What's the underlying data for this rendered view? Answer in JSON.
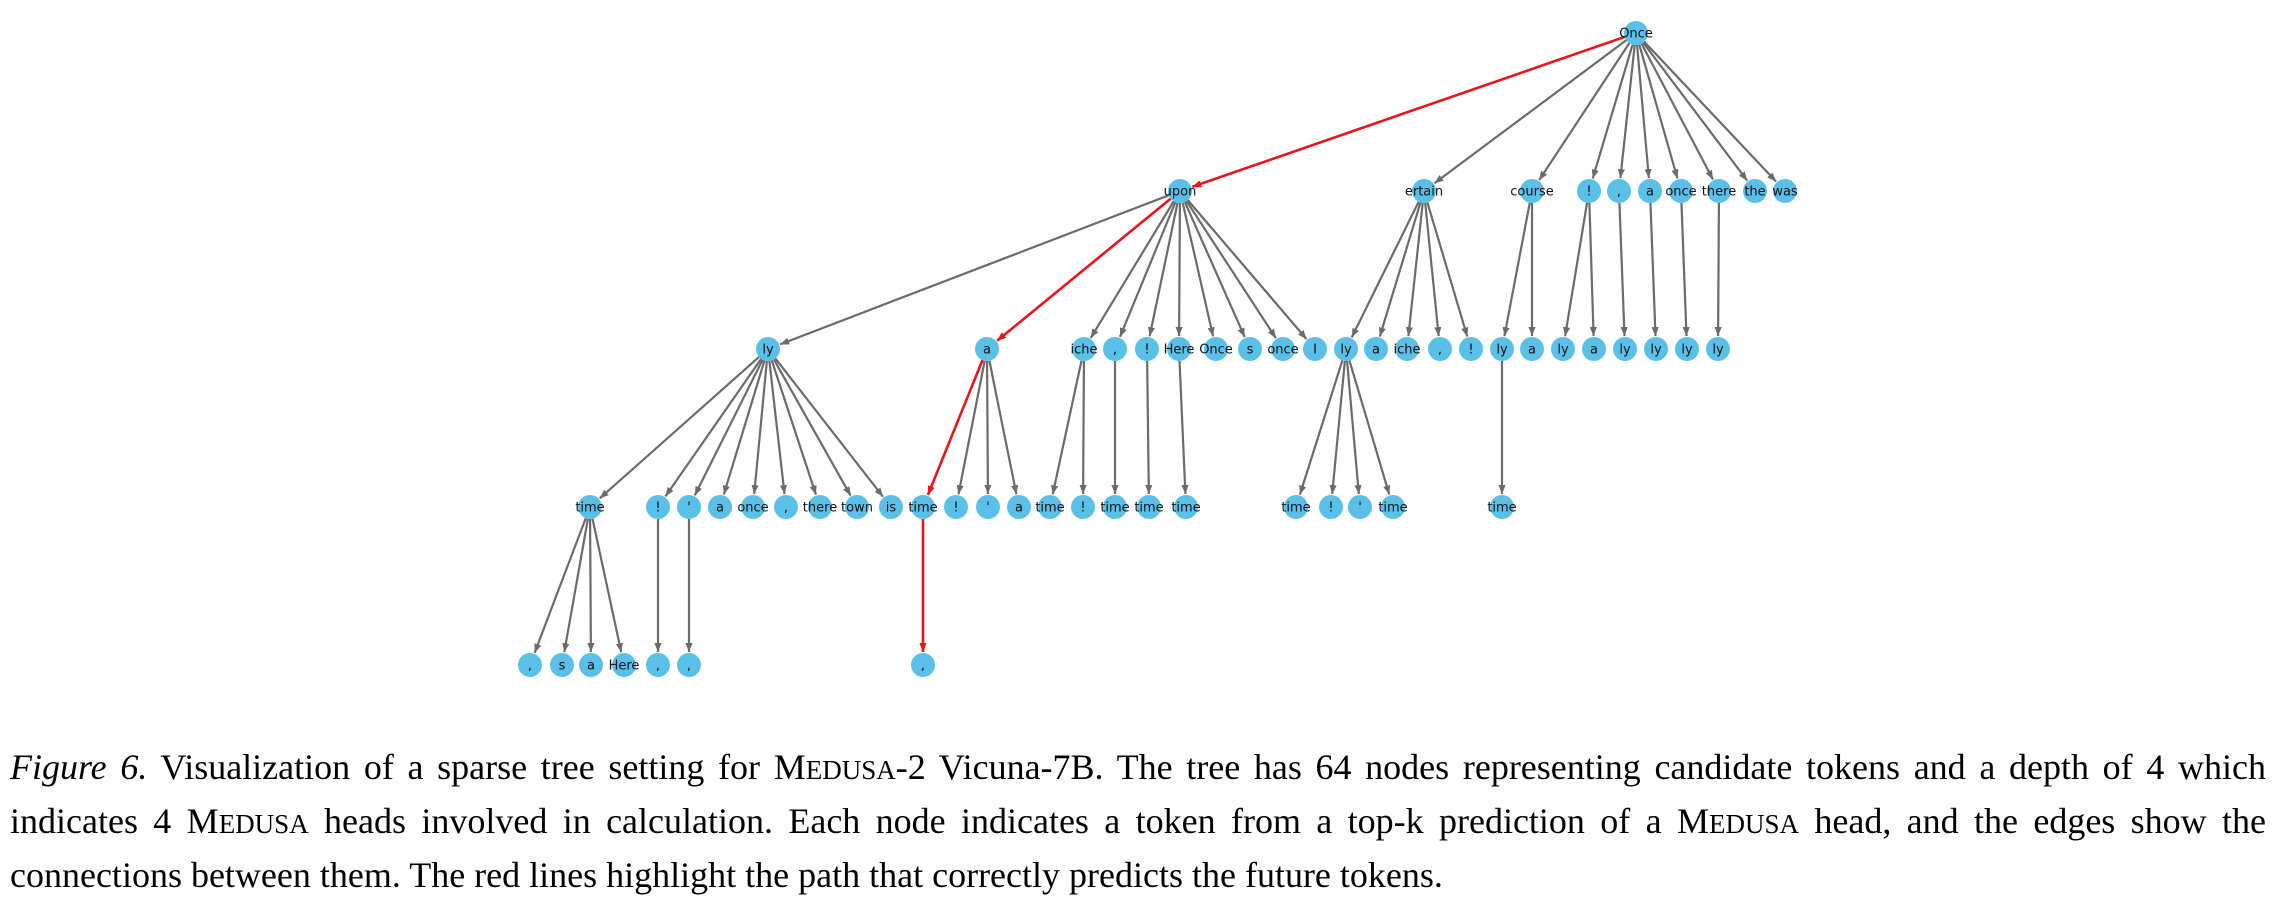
{
  "colors": {
    "node": "#5bc0e8",
    "edge": "#6b6b6b",
    "highlight_edge": "#e8161c",
    "label": "#111111"
  },
  "tree": {
    "depth": 4,
    "node_count": 64,
    "root": "Once",
    "levels": [
      [
        {
          "label": "Once"
        }
      ],
      [
        {
          "label": "upon",
          "parent": 0
        },
        {
          "label": "ertain",
          "parent": 0
        },
        {
          "label": "course",
          "parent": 0
        },
        {
          "label": "!",
          "parent": 0
        },
        {
          "label": ",",
          "parent": 0
        },
        {
          "label": "a",
          "parent": 0
        },
        {
          "label": "once",
          "parent": 0
        },
        {
          "label": "there",
          "parent": 0
        },
        {
          "label": "the",
          "parent": 0
        },
        {
          "label": "was",
          "parent": 0
        }
      ],
      [
        {
          "label": "ly",
          "parent": 0
        },
        {
          "label": "a",
          "parent": 0
        },
        {
          "label": "iche",
          "parent": 0
        },
        {
          "label": ",",
          "parent": 0
        },
        {
          "label": "!",
          "parent": 0
        },
        {
          "label": "Here",
          "parent": 0
        },
        {
          "label": "Once",
          "parent": 0
        },
        {
          "label": "s",
          "parent": 0
        },
        {
          "label": "once",
          "parent": 0
        },
        {
          "label": "I",
          "parent": 0
        },
        {
          "label": "ly",
          "parent": 1
        },
        {
          "label": "a",
          "parent": 1
        },
        {
          "label": "iche",
          "parent": 1
        },
        {
          "label": ",",
          "parent": 1
        },
        {
          "label": "!",
          "parent": 1
        },
        {
          "label": "ly",
          "parent": 2
        },
        {
          "label": "a",
          "parent": 2
        },
        {
          "label": "ly",
          "parent": 3
        },
        {
          "label": "a",
          "parent": 3
        },
        {
          "label": "ly",
          "parent": 4
        },
        {
          "label": "ly",
          "parent": 5
        },
        {
          "label": "ly",
          "parent": 6
        },
        {
          "label": "ly",
          "parent": 7
        }
      ],
      [
        {
          "label": "time",
          "parent": 0
        },
        {
          "label": "!",
          "parent": 0
        },
        {
          "label": "'",
          "parent": 0
        },
        {
          "label": "a",
          "parent": 0
        },
        {
          "label": "once",
          "parent": 0
        },
        {
          "label": ",",
          "parent": 0
        },
        {
          "label": "there",
          "parent": 0
        },
        {
          "label": "town",
          "parent": 0
        },
        {
          "label": "is",
          "parent": 0
        },
        {
          "label": "time",
          "parent": 1
        },
        {
          "label": "!",
          "parent": 1
        },
        {
          "label": "'",
          "parent": 1
        },
        {
          "label": "a",
          "parent": 1
        },
        {
          "label": "time",
          "parent": 2
        },
        {
          "label": "!",
          "parent": 2
        },
        {
          "label": "time",
          "parent": 3
        },
        {
          "label": "time",
          "parent": 4
        },
        {
          "label": "time",
          "parent": 5
        },
        {
          "label": "time",
          "parent": 10
        },
        {
          "label": "!",
          "parent": 10
        },
        {
          "label": "'",
          "parent": 10
        },
        {
          "label": "time",
          "parent": 10
        },
        {
          "label": "time",
          "parent": 15
        }
      ],
      [
        {
          "label": ",",
          "parent": 0
        },
        {
          "label": "s",
          "parent": 0
        },
        {
          "label": "a",
          "parent": 0
        },
        {
          "label": "Here",
          "parent": 0
        },
        {
          "label": ",",
          "parent": 1
        },
        {
          "label": ",",
          "parent": 2
        },
        {
          "label": ",",
          "parent": 9
        }
      ]
    ],
    "highlight_path": [
      [
        0,
        0
      ],
      [
        1,
        0
      ],
      [
        2,
        1
      ],
      [
        3,
        9
      ],
      [
        4,
        6
      ]
    ]
  },
  "caption": {
    "figure_label": "Figure 6.",
    "part1": " Visualization of a sparse tree setting for ",
    "medusa_M": "M",
    "medusa_rest": "EDUSA",
    "part2": "-2 Vicuna-7B. The tree has 64 nodes representing candidate tokens and a depth of 4 which indicates 4 ",
    "part3": " heads involved in calculation. Each node indicates a token from a top-k prediction of a ",
    "part4": " head, and the edges show the connections between them. The red lines highlight the path that correctly predicts the future tokens."
  }
}
